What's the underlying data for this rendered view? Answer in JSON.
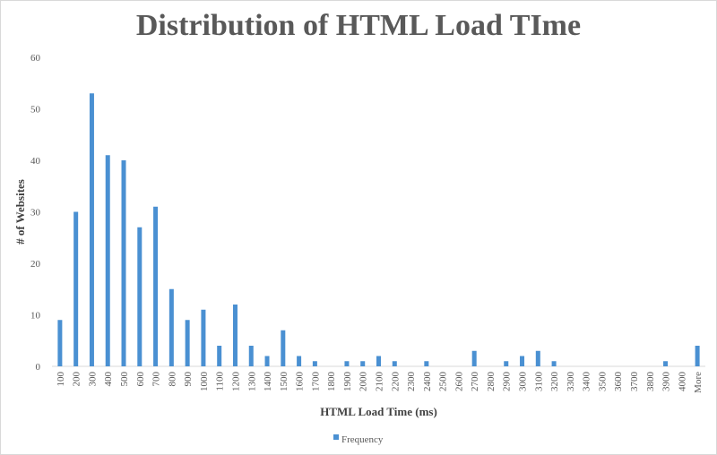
{
  "chart_data": {
    "type": "bar",
    "title": "Distribution of HTML Load TIme",
    "xlabel": "HTML Load Time (ms)",
    "ylabel": "# of Websites",
    "ylim": [
      0,
      60
    ],
    "yticks": [
      0,
      10,
      20,
      30,
      40,
      50,
      60
    ],
    "grid": false,
    "legend_position": "bottom",
    "bar_color": "#4a90d2",
    "categories": [
      "100",
      "200",
      "300",
      "400",
      "500",
      "600",
      "700",
      "800",
      "900",
      "1000",
      "1100",
      "1200",
      "1300",
      "1400",
      "1500",
      "1600",
      "1700",
      "1800",
      "1900",
      "2000",
      "2100",
      "2200",
      "2300",
      "2400",
      "2500",
      "2600",
      "2700",
      "2800",
      "2900",
      "3000",
      "3100",
      "3200",
      "3300",
      "3400",
      "3500",
      "3600",
      "3700",
      "3800",
      "3900",
      "4000",
      "More"
    ],
    "series": [
      {
        "name": "Frequency",
        "values": [
          9,
          30,
          53,
          41,
          40,
          27,
          31,
          15,
          9,
          11,
          4,
          12,
          4,
          2,
          7,
          2,
          1,
          0,
          1,
          1,
          2,
          1,
          0,
          1,
          0,
          0,
          3,
          0,
          1,
          2,
          3,
          1,
          0,
          0,
          0,
          0,
          0,
          0,
          1,
          0,
          4
        ]
      }
    ]
  }
}
